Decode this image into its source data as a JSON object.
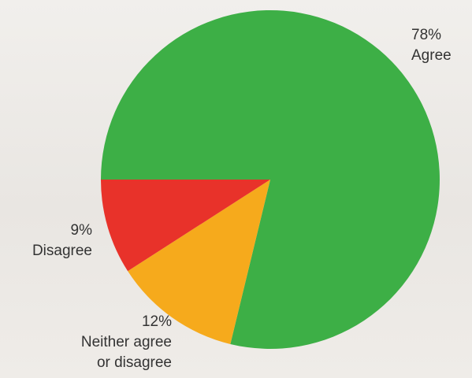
{
  "chart_data": {
    "type": "pie",
    "categories": [
      "Agree",
      "Neither agree or disagree",
      "Disagree"
    ],
    "values": [
      78,
      12,
      9
    ],
    "value_labels": [
      "78%",
      "12%",
      "9%"
    ],
    "colors": [
      "#3daf46",
      "#f6aa1c",
      "#e8322a"
    ]
  }
}
